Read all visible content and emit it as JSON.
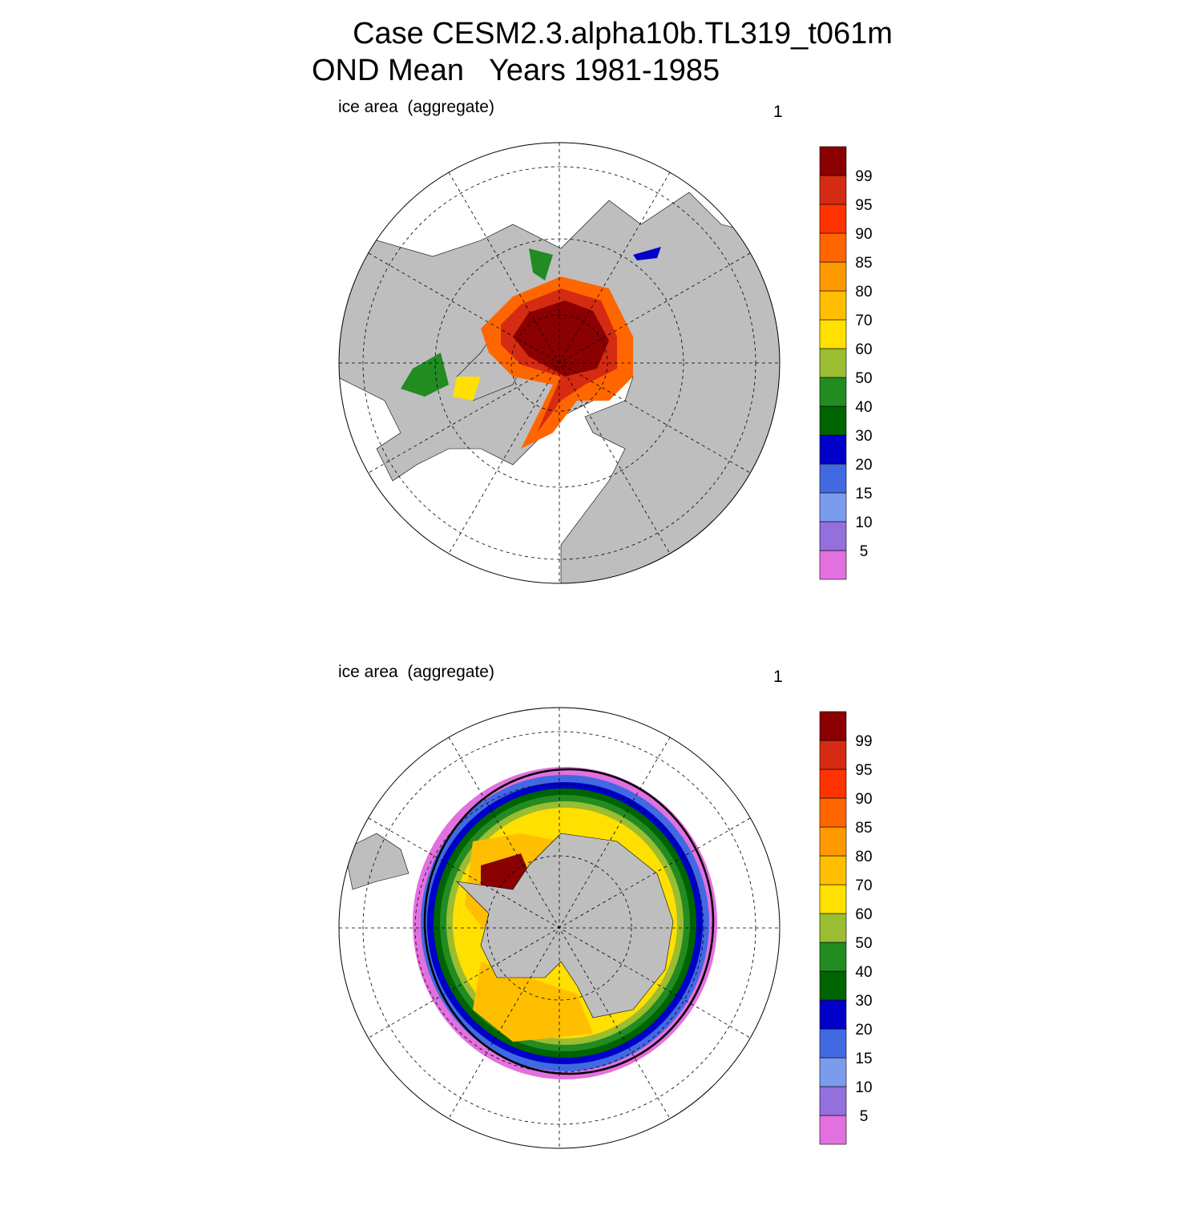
{
  "title": [
    "Case CESM2.3.alpha10b.TL319_t061m",
    "OND Mean   Years 1981-1985"
  ],
  "panels": [
    {
      "left_label": "ice area  (aggregate)",
      "right_label": "1"
    },
    {
      "left_label": "ice area  (aggregate)",
      "right_label": "1"
    }
  ],
  "colorbar": {
    "levels": [
      5,
      10,
      15,
      20,
      30,
      40,
      50,
      60,
      70,
      80,
      85,
      90,
      95,
      99
    ],
    "colors": [
      "#e370df",
      "#9370db",
      "#7b9bee",
      "#4169e1",
      "#0000c8",
      "#006400",
      "#228b22",
      "#9abd32",
      "#ffe000",
      "#ffbf00",
      "#ff9900",
      "#ff6600",
      "#ff3300",
      "#d42b12",
      "#8b0000"
    ]
  }
}
